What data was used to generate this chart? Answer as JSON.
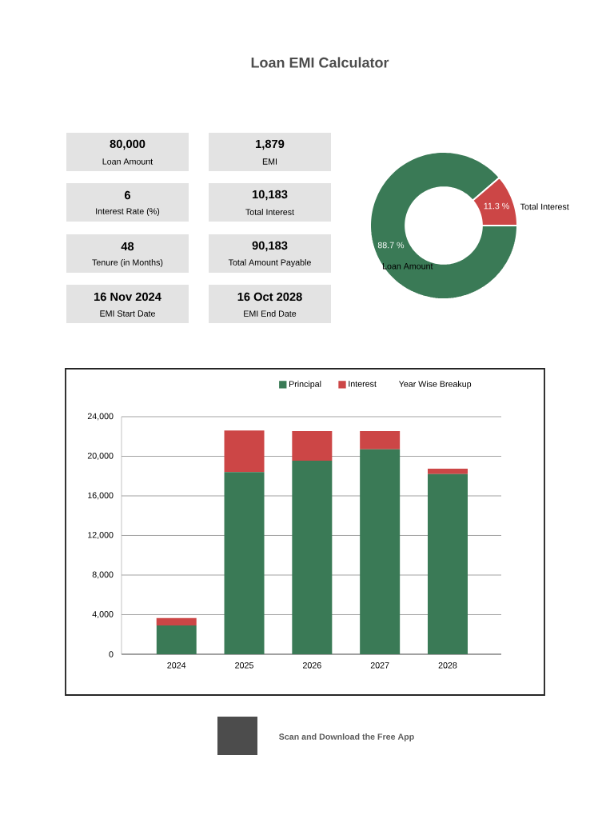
{
  "chart_data": [
    {
      "type": "other",
      "title": "Loan EMI Calculator",
      "categories": [
        "Loan Amount",
        "EMI",
        "Interest Rate (%)",
        "Total Interest",
        "Tenure (in Months)",
        "Total Amount Payable",
        "EMI Start Date",
        "EMI End Date"
      ],
      "value_labels": [
        "80,000",
        "1,879",
        "6",
        "10,183",
        "48",
        "90,183",
        "16 Nov 2024",
        "16 Oct 2028"
      ]
    },
    {
      "type": "donut",
      "categories": [
        "Loan Amount",
        "Total Interest"
      ],
      "values": [
        88.7,
        11.3
      ],
      "colors": [
        "#3a7a56",
        "#cc4646"
      ],
      "value_labels": [
        "88.7 %",
        "11.3 %"
      ]
    },
    {
      "type": "bar",
      "title": "Year Wise Breakup",
      "stacked": true,
      "categories": [
        "2024",
        "2025",
        "2026",
        "2027",
        "2028"
      ],
      "series": [
        {
          "name": "Principal",
          "color": "#3a7a56",
          "values": [
            2900,
            18400,
            19550,
            20700,
            18200
          ]
        },
        {
          "name": "Interest",
          "color": "#cc4646",
          "values": [
            750,
            4200,
            3000,
            1850,
            550
          ]
        }
      ],
      "ylim": [
        0,
        24000
      ],
      "yticks": [
        0,
        {
          "value": 4000,
          "label": "4,000"
        },
        {
          "value": 8000,
          "label": "8,000"
        },
        {
          "value": 12000,
          "label": "12,000"
        },
        {
          "value": 16000,
          "label": "16,000"
        },
        {
          "value": 20000,
          "label": "20,000"
        },
        {
          "value": 24000,
          "label": "24,000"
        }
      ],
      "grid": "y",
      "legend": "top",
      "annotations": [
        "Scan and Download the Free App"
      ]
    }
  ]
}
